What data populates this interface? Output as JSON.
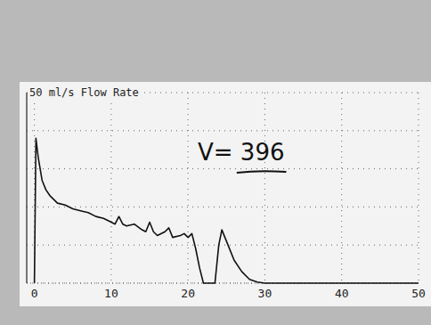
{
  "chart_data": {
    "type": "line",
    "title": "50 ml/s Flow Rate",
    "annotation": "V= 396",
    "x": [
      0,
      0.2,
      0.5,
      1,
      1.5,
      2,
      3,
      4,
      5,
      6,
      7,
      8,
      9,
      10,
      10.5,
      11,
      11.5,
      12,
      13,
      14,
      14.5,
      15,
      15.5,
      16,
      17,
      17.5,
      18,
      19,
      19.5,
      20,
      20.5,
      21,
      21.5,
      22,
      22.3,
      23.5,
      24,
      24.4,
      25,
      26,
      27,
      28,
      29,
      30,
      35,
      40,
      45,
      50
    ],
    "values": [
      0,
      38,
      33,
      27,
      24.5,
      23,
      21,
      20.5,
      19.5,
      19,
      18.5,
      17.5,
      17,
      16,
      15.5,
      17.5,
      15.5,
      15,
      15.5,
      14,
      13.5,
      16,
      13.5,
      12.5,
      13.5,
      14.5,
      12,
      12.5,
      13,
      12,
      13,
      9,
      4,
      0,
      0,
      0,
      10,
      14,
      11,
      6,
      3,
      1,
      0.3,
      0,
      0,
      0,
      0,
      0
    ],
    "color": "#111111",
    "xlim": [
      -1,
      50
    ],
    "xticks": [
      0,
      10,
      20,
      30,
      40,
      50
    ],
    "ylim": [
      0,
      50
    ],
    "yticks": [
      0,
      10,
      20,
      30,
      40,
      50
    ],
    "grid": true,
    "tick_labels": "x"
  }
}
